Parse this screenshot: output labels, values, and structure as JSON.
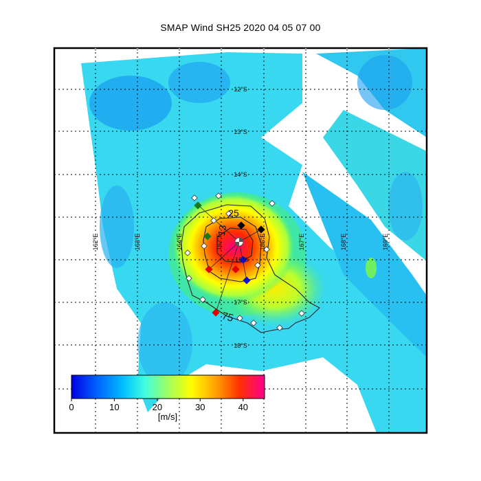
{
  "title": "SMAP Wind  SH25  2020 04 05 07 00",
  "lat_labels": [
    "12°S",
    "13°S",
    "14°S",
    "17°S",
    "18°S"
  ],
  "lon_labels": [
    "162°E",
    "163°E",
    "164°E",
    "167°E",
    "168°E",
    "169°E"
  ],
  "center_labels": [
    "162°E",
    "16°S",
    "166°E"
  ],
  "radius_labels": [
    "25",
    "13",
    "75"
  ],
  "colorbar": {
    "unit_label": "[m/s]",
    "ticks": [
      "0",
      "10",
      "20",
      "30",
      "40"
    ],
    "range": [
      0,
      45
    ],
    "colors": [
      "#0000e0",
      "#0060ff",
      "#00c0ff",
      "#40ffe0",
      "#a0ff60",
      "#ffff00",
      "#ffa000",
      "#ff3000",
      "#ff0090"
    ]
  },
  "colors": {
    "quad_ne": "#000000",
    "quad_se": "#1010d0",
    "quad_sw": "#e00000",
    "quad_nw": "#1a7a1a",
    "outline": "#222222"
  }
}
